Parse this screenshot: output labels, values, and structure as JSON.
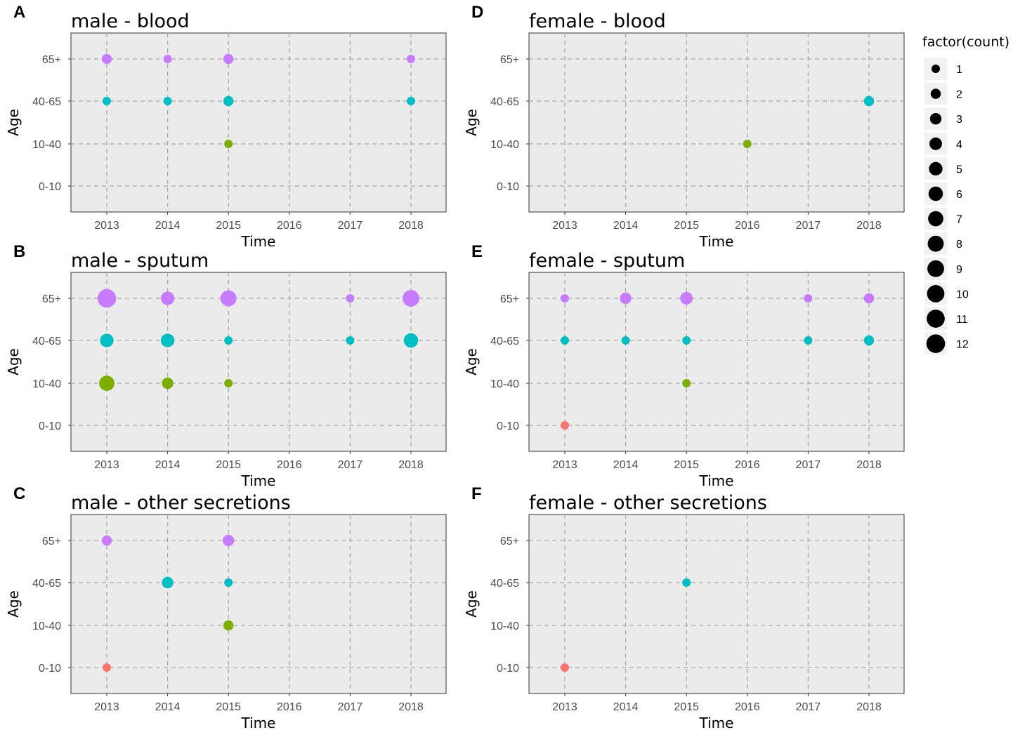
{
  "chart_data": [
    {
      "type": "scatter",
      "panel_letter": "A",
      "title": "male - blood",
      "xlabel": "Time",
      "ylabel": "Age",
      "x_ticks": [
        "2013",
        "2014",
        "2015",
        "2016",
        "2017",
        "2018"
      ],
      "y_categories": [
        "0-10",
        "10-40",
        "40-65",
        "65+"
      ],
      "points": [
        {
          "x": "2013",
          "y": "65+",
          "count": 2
        },
        {
          "x": "2014",
          "y": "65+",
          "count": 1
        },
        {
          "x": "2015",
          "y": "65+",
          "count": 2
        },
        {
          "x": "2018",
          "y": "65+",
          "count": 1
        },
        {
          "x": "2013",
          "y": "40-65",
          "count": 1
        },
        {
          "x": "2014",
          "y": "40-65",
          "count": 1
        },
        {
          "x": "2015",
          "y": "40-65",
          "count": 2
        },
        {
          "x": "2018",
          "y": "40-65",
          "count": 1
        },
        {
          "x": "2015",
          "y": "10-40",
          "count": 1
        }
      ]
    },
    {
      "type": "scatter",
      "panel_letter": "B",
      "title": "male - sputum",
      "xlabel": "Time",
      "ylabel": "Age",
      "x_ticks": [
        "2013",
        "2014",
        "2015",
        "2016",
        "2017",
        "2018"
      ],
      "y_categories": [
        "0-10",
        "10-40",
        "40-65",
        "65+"
      ],
      "points": [
        {
          "x": "2013",
          "y": "65+",
          "count": 12
        },
        {
          "x": "2014",
          "y": "65+",
          "count": 5
        },
        {
          "x": "2015",
          "y": "65+",
          "count": 8
        },
        {
          "x": "2017",
          "y": "65+",
          "count": 1
        },
        {
          "x": "2018",
          "y": "65+",
          "count": 9
        },
        {
          "x": "2013",
          "y": "40-65",
          "count": 5
        },
        {
          "x": "2014",
          "y": "40-65",
          "count": 5
        },
        {
          "x": "2015",
          "y": "40-65",
          "count": 1
        },
        {
          "x": "2017",
          "y": "40-65",
          "count": 1
        },
        {
          "x": "2018",
          "y": "40-65",
          "count": 6
        },
        {
          "x": "2013",
          "y": "10-40",
          "count": 7
        },
        {
          "x": "2014",
          "y": "10-40",
          "count": 3
        },
        {
          "x": "2015",
          "y": "10-40",
          "count": 1
        }
      ]
    },
    {
      "type": "scatter",
      "panel_letter": "C",
      "title": "male - other secretions",
      "xlabel": "Time",
      "ylabel": "Age",
      "x_ticks": [
        "2013",
        "2014",
        "2015",
        "2016",
        "2017",
        "2018"
      ],
      "y_categories": [
        "0-10",
        "10-40",
        "40-65",
        "65+"
      ],
      "points": [
        {
          "x": "2013",
          "y": "65+",
          "count": 2
        },
        {
          "x": "2015",
          "y": "65+",
          "count": 3
        },
        {
          "x": "2014",
          "y": "40-65",
          "count": 3
        },
        {
          "x": "2015",
          "y": "40-65",
          "count": 1
        },
        {
          "x": "2015",
          "y": "10-40",
          "count": 2
        },
        {
          "x": "2013",
          "y": "0-10",
          "count": 1
        }
      ]
    },
    {
      "type": "scatter",
      "panel_letter": "D",
      "title": "female - blood",
      "xlabel": "Time",
      "ylabel": "Age",
      "x_ticks": [
        "2013",
        "2014",
        "2015",
        "2016",
        "2017",
        "2018"
      ],
      "y_categories": [
        "0-10",
        "10-40",
        "40-65",
        "65+"
      ],
      "points": [
        {
          "x": "2018",
          "y": "40-65",
          "count": 2
        },
        {
          "x": "2016",
          "y": "10-40",
          "count": 1
        }
      ]
    },
    {
      "type": "scatter",
      "panel_letter": "E",
      "title": "female - sputum",
      "xlabel": "Time",
      "ylabel": "Age",
      "x_ticks": [
        "2013",
        "2014",
        "2015",
        "2016",
        "2017",
        "2018"
      ],
      "y_categories": [
        "0-10",
        "10-40",
        "40-65",
        "65+"
      ],
      "points": [
        {
          "x": "2013",
          "y": "65+",
          "count": 1
        },
        {
          "x": "2014",
          "y": "65+",
          "count": 3
        },
        {
          "x": "2015",
          "y": "65+",
          "count": 4
        },
        {
          "x": "2017",
          "y": "65+",
          "count": 1
        },
        {
          "x": "2018",
          "y": "65+",
          "count": 2
        },
        {
          "x": "2013",
          "y": "40-65",
          "count": 1
        },
        {
          "x": "2014",
          "y": "40-65",
          "count": 1
        },
        {
          "x": "2015",
          "y": "40-65",
          "count": 1
        },
        {
          "x": "2017",
          "y": "40-65",
          "count": 1
        },
        {
          "x": "2018",
          "y": "40-65",
          "count": 2
        },
        {
          "x": "2015",
          "y": "10-40",
          "count": 1
        },
        {
          "x": "2013",
          "y": "0-10",
          "count": 1
        }
      ]
    },
    {
      "type": "scatter",
      "panel_letter": "F",
      "title": "female - other secretions",
      "xlabel": "Time",
      "ylabel": "Age",
      "x_ticks": [
        "2013",
        "2014",
        "2015",
        "2016",
        "2017",
        "2018"
      ],
      "y_categories": [
        "0-10",
        "10-40",
        "40-65",
        "65+"
      ],
      "points": [
        {
          "x": "2015",
          "y": "40-65",
          "count": 1
        },
        {
          "x": "2013",
          "y": "0-10",
          "count": 1
        }
      ]
    }
  ],
  "legend": {
    "title": "factor(count)",
    "entries": [
      "1",
      "2",
      "3",
      "4",
      "5",
      "6",
      "7",
      "8",
      "9",
      "10",
      "11",
      "12"
    ]
  },
  "colors": {
    "0-10": "#f8766d",
    "10-40": "#7cae00",
    "40-65": "#00bfc4",
    "65+": "#c77cff",
    "panel_bg": "#ebebeb",
    "grid": "#a8a8a8",
    "legend_key_bg": "#f2f2f2",
    "legend_dot": "#000000"
  }
}
